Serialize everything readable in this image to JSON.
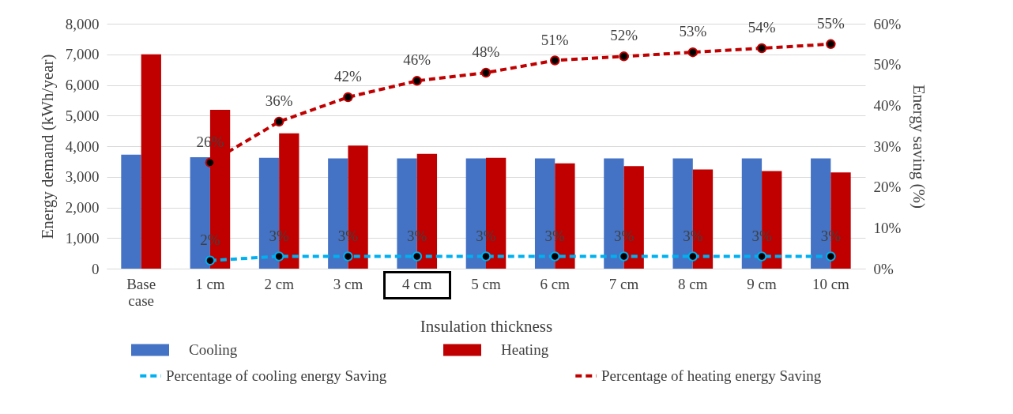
{
  "chart_data": {
    "type": "bar",
    "xlabel": "Insulation thickness",
    "ylabel": "Energy demand (kWh/year)",
    "y2label": "Energy saving (%)",
    "categories": [
      "Base case",
      "1 cm",
      "2 cm",
      "3 cm",
      "4 cm",
      "5 cm",
      "6 cm",
      "7 cm",
      "8 cm",
      "9 cm",
      "10 cm"
    ],
    "series": [
      {
        "name": "Cooling",
        "color": "#4472c4",
        "values": [
          3720,
          3640,
          3620,
          3600,
          3600,
          3600,
          3600,
          3600,
          3600,
          3600,
          3600
        ]
      },
      {
        "name": "Heating",
        "color": "#c00000",
        "values": [
          7000,
          5190,
          4420,
          4020,
          3750,
          3620,
          3440,
          3350,
          3240,
          3190,
          3140
        ]
      },
      {
        "name": "Percentage of cooling energy Saving",
        "type": "line",
        "axis": "y2",
        "color": "#00b0f0",
        "values": [
          null,
          2,
          3,
          3,
          3,
          3,
          3,
          3,
          3,
          3,
          3
        ],
        "value_labels": [
          null,
          "2%",
          "3%",
          "3%",
          "3%",
          "3%",
          "3%",
          "3%",
          "3%",
          "3%",
          "3%"
        ]
      },
      {
        "name": "Percentage of heating energy Saving",
        "type": "line",
        "axis": "y2",
        "color": "#c00000",
        "values": [
          null,
          26,
          36,
          42,
          46,
          48,
          51,
          52,
          53,
          54,
          55
        ],
        "value_labels": [
          null,
          "26%",
          "36%",
          "42%",
          "46%",
          "48%",
          "51%",
          "52%",
          "53%",
          "54%",
          "55%"
        ]
      }
    ],
    "ylim": [
      0,
      8000
    ],
    "yticks": [
      0,
      {
        "value": 1000,
        "label": "1,000"
      },
      {
        "value": 2000,
        "label": "2,000"
      },
      {
        "value": 3000,
        "label": "3,000"
      },
      {
        "value": 4000,
        "label": "4,000"
      },
      {
        "value": 5000,
        "label": "5,000"
      },
      {
        "value": 6000,
        "label": "6,000"
      },
      {
        "value": 7000,
        "label": "7,000"
      },
      {
        "value": 8000,
        "label": "8,000"
      }
    ],
    "y2lim": [
      0,
      60
    ],
    "y2ticks": [
      {
        "value": 0,
        "label": "0%"
      },
      {
        "value": 10,
        "label": "10%"
      },
      {
        "value": 20,
        "label": "20%"
      },
      {
        "value": 30,
        "label": "30%"
      },
      {
        "value": 40,
        "label": "40%"
      },
      {
        "value": 50,
        "label": "50%"
      },
      {
        "value": 60,
        "label": "60%"
      }
    ],
    "grid": "y",
    "legend": "bottom",
    "marker": "circle",
    "line_style": "dashed"
  }
}
